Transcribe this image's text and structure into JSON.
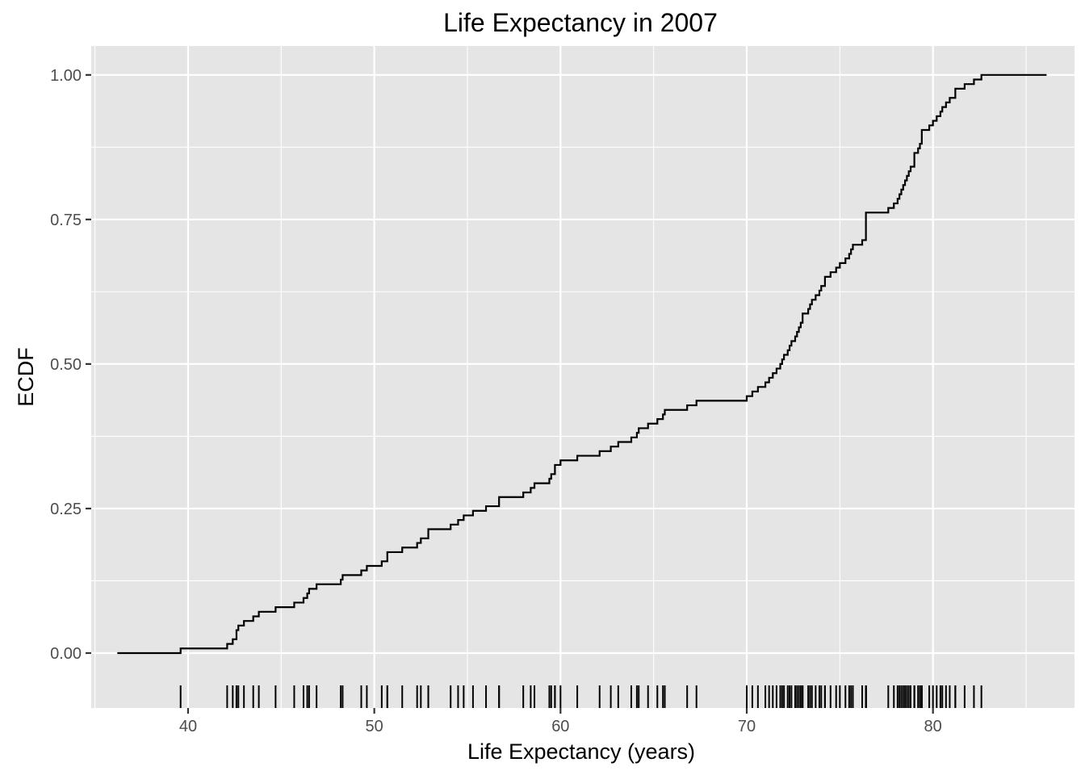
{
  "chart_data": {
    "type": "ecdf",
    "title": "Life Expectancy in 2007",
    "xlabel": "Life Expectancy (years)",
    "ylabel": "ECDF",
    "xlim": [
      34.8,
      87.6
    ],
    "ylim": [
      -0.095,
      1.05
    ],
    "x_ticks": [
      40,
      50,
      60,
      70,
      80
    ],
    "x_tick_labels": [
      "40",
      "50",
      "60",
      "70",
      "80"
    ],
    "y_ticks": [
      0,
      0.25,
      0.5,
      0.75,
      1
    ],
    "y_tick_labels": [
      "0.00",
      "0.25",
      "0.50",
      "0.75",
      "1.00"
    ],
    "grid": true,
    "rug": true,
    "line_start": 36.2,
    "line_end": 86.1,
    "values": [
      39.6,
      42.1,
      42.4,
      42.6,
      42.6,
      42.7,
      43.0,
      43.5,
      43.8,
      44.7,
      45.7,
      46.2,
      46.4,
      46.5,
      46.9,
      48.2,
      48.3,
      49.3,
      49.6,
      50.4,
      50.7,
      50.7,
      51.5,
      52.3,
      52.5,
      52.9,
      52.9,
      54.1,
      54.5,
      54.8,
      55.3,
      56.0,
      56.7,
      56.7,
      58.0,
      58.4,
      58.6,
      59.4,
      59.5,
      59.7,
      59.7,
      60.0,
      60.9,
      62.1,
      62.7,
      63.1,
      63.8,
      64.1,
      64.2,
      64.7,
      65.2,
      65.5,
      65.6,
      66.8,
      67.3,
      70.0,
      70.3,
      70.6,
      71.0,
      71.2,
      71.4,
      71.6,
      71.8,
      71.9,
      72.0,
      72.2,
      72.3,
      72.4,
      72.6,
      72.7,
      72.8,
      72.9,
      73.0,
      73.0,
      73.3,
      73.4,
      73.5,
      73.7,
      73.9,
      74.0,
      74.2,
      74.2,
      74.5,
      74.8,
      75.0,
      75.3,
      75.5,
      75.6,
      75.7,
      76.2,
      76.4,
      76.4,
      76.4,
      76.4,
      76.4,
      76.4,
      77.6,
      77.9,
      78.1,
      78.2,
      78.3,
      78.4,
      78.5,
      78.6,
      78.7,
      78.8,
      79.0,
      79.0,
      79.0,
      79.2,
      79.3,
      79.4,
      79.4,
      79.4,
      79.8,
      80.0,
      80.2,
      80.4,
      80.5,
      80.7,
      80.9,
      81.2,
      81.2,
      81.7,
      82.2,
      82.6
    ]
  }
}
